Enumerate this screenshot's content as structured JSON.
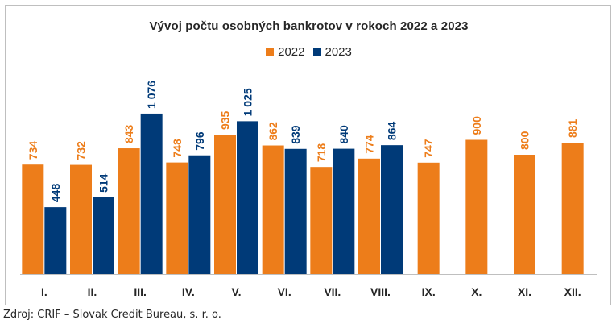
{
  "chart_data": {
    "type": "bar",
    "title": "Vývoj počtu osobných bankrotov v rokoch 2022 a 2023",
    "categories": [
      "I.",
      "II.",
      "III.",
      "IV.",
      "V.",
      "VI.",
      "VII.",
      "VIII.",
      "IX.",
      "X.",
      "XI.",
      "XII."
    ],
    "series": [
      {
        "name": "2022",
        "color": "#ed7d1a",
        "values": [
          734,
          732,
          843,
          748,
          935,
          862,
          718,
          774,
          747,
          900,
          800,
          881
        ],
        "labels": [
          "734",
          "732",
          "843",
          "748",
          "935",
          "862",
          "718",
          "774",
          "747",
          "900",
          "800",
          "881"
        ]
      },
      {
        "name": "2023",
        "color": "#003a78",
        "values": [
          448,
          514,
          1076,
          796,
          1025,
          839,
          840,
          864,
          null,
          null,
          null,
          null
        ],
        "labels": [
          "448",
          "514",
          "1 076",
          "796",
          "1 025",
          "839",
          "840",
          "864",
          "",
          "",
          "",
          ""
        ]
      }
    ],
    "ylim": [
      0,
      1200
    ],
    "grid": false,
    "legend_position": "top-center"
  },
  "source": "Zdroj: CRIF – Slovak Credit Bureau, s. r. o."
}
